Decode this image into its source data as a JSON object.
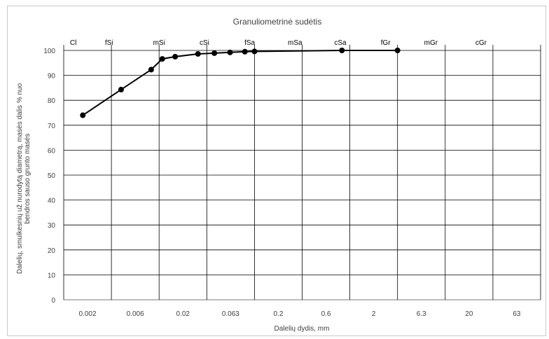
{
  "chart_data": {
    "type": "line",
    "title": "Granuliometrinė sudėtis",
    "xlabel": "Dalelių dydis, mm",
    "ylabel_line1": "Dalelių, smulkesnių už nurodytą diametrą, masės dalis  % nuo",
    "ylabel_line2": "bendros sauso grunto masės",
    "x_scale": "categorical-log",
    "x_ticks": [
      "0.002",
      "0.006",
      "0.02",
      "0.063",
      "0.2",
      "0.6",
      "2",
      "6.3",
      "20",
      "63"
    ],
    "soil_classes": [
      "Cl",
      "fSi",
      "mSi",
      "cSi",
      "fSa",
      "mSa",
      "cSa",
      "fGr",
      "mGr",
      "cGr"
    ],
    "ylim": [
      0,
      100
    ],
    "y_ticks": [
      0,
      10,
      20,
      30,
      40,
      50,
      60,
      70,
      80,
      90,
      100
    ],
    "grid": "vertical and horizontal",
    "line_color": "#000000",
    "series": [
      {
        "x": [
          0.001,
          0.0025,
          0.005,
          0.0065,
          0.009,
          0.016,
          0.024,
          0.035,
          0.05,
          0.063,
          0.5,
          2
        ],
        "y": [
          74,
          84.3,
          92.3,
          96.6,
          97.5,
          98.6,
          98.9,
          99.2,
          99.5,
          99.6,
          100,
          100
        ]
      }
    ]
  }
}
